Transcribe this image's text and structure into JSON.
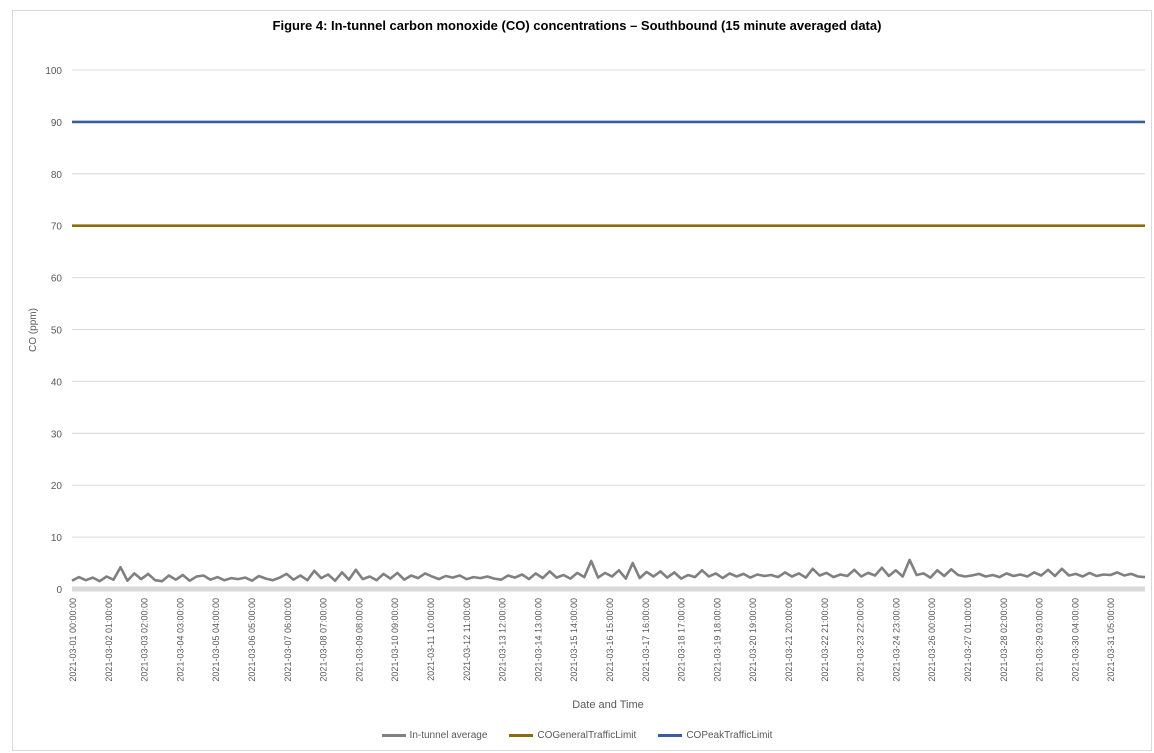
{
  "chart_data": {
    "type": "line",
    "title": "Figure 4: In-tunnel carbon monoxide (CO) concentrations – Southbound (15 minute averaged data)",
    "xlabel": "Date and Time",
    "ylabel": "CO (ppm)",
    "ylim": [
      0,
      100
    ],
    "yticks": [
      0,
      10,
      20,
      30,
      40,
      50,
      60,
      70,
      80,
      90,
      100
    ],
    "grid": true,
    "legend_position": "bottom",
    "x_tick_labels": [
      "2021-03-01 00:00:00",
      "2021-03-02 01:00:00",
      "2021-03-03 02:00:00",
      "2021-03-04 03:00:00",
      "2021-03-05 04:00:00",
      "2021-03-06 05:00:00",
      "2021-03-07 06:00:00",
      "2021-03-08 07:00:00",
      "2021-03-09 08:00:00",
      "2021-03-10 09:00:00",
      "2021-03-11 10:00:00",
      "2021-03-12 11:00:00",
      "2021-03-13 12:00:00",
      "2021-03-14 13:00:00",
      "2021-03-15 14:00:00",
      "2021-03-16 15:00:00",
      "2021-03-17 16:00:00",
      "2021-03-18 17:00:00",
      "2021-03-19 18:00:00",
      "2021-03-20 19:00:00",
      "2021-03-21 20:00:00",
      "2021-03-22 21:00:00",
      "2021-03-23 22:00:00",
      "2021-03-24 23:00:00",
      "2021-03-26 00:00:00",
      "2021-03-27 01:00:00",
      "2021-03-28 02:00:00",
      "2021-03-29 03:00:00",
      "2021-03-30 04:00:00",
      "2021-03-31 05:00:00"
    ],
    "series": [
      {
        "name": "In-tunnel average",
        "color": "#808080",
        "values": [
          1.6,
          2.3,
          1.7,
          2.2,
          1.5,
          2.4,
          1.8,
          4.2,
          1.6,
          3.0,
          1.9,
          2.9,
          1.7,
          1.5,
          2.6,
          1.8,
          2.7,
          1.6,
          2.4,
          2.6,
          1.8,
          2.3,
          1.7,
          2.1,
          1.9,
          2.2,
          1.6,
          2.5,
          2.0,
          1.7,
          2.2,
          2.9,
          1.8,
          2.6,
          1.7,
          3.5,
          2.1,
          2.8,
          1.6,
          3.2,
          1.8,
          3.7,
          1.9,
          2.4,
          1.7,
          2.9,
          2.0,
          3.1,
          1.8,
          2.6,
          2.1,
          3.0,
          2.4,
          1.9,
          2.5,
          2.2,
          2.6,
          1.9,
          2.3,
          2.1,
          2.4,
          2.0,
          1.8,
          2.6,
          2.2,
          2.8,
          1.9,
          3.0,
          2.1,
          3.4,
          2.2,
          2.7,
          2.0,
          3.1,
          2.3,
          5.4,
          2.2,
          3.1,
          2.4,
          3.6,
          2.0,
          5.0,
          2.1,
          3.3,
          2.4,
          3.4,
          2.2,
          3.2,
          2.0,
          2.7,
          2.3,
          3.6,
          2.4,
          3.0,
          2.1,
          3.0,
          2.4,
          2.9,
          2.2,
          2.8,
          2.5,
          2.7,
          2.3,
          3.2,
          2.4,
          3.0,
          2.2,
          3.9,
          2.6,
          3.1,
          2.3,
          2.8,
          2.5,
          3.7,
          2.4,
          3.1,
          2.6,
          4.1,
          2.5,
          3.6,
          2.4,
          5.6,
          2.7,
          3.0,
          2.2,
          3.6,
          2.5,
          3.8,
          2.7,
          2.4,
          2.6,
          2.9,
          2.4,
          2.7,
          2.3,
          3.0,
          2.5,
          2.8,
          2.4,
          3.2,
          2.6,
          3.7,
          2.5,
          3.9,
          2.6,
          2.9,
          2.4,
          3.1,
          2.5,
          2.8,
          2.7,
          3.2,
          2.6,
          2.9,
          2.4,
          2.3
        ]
      },
      {
        "name": "COGeneralTrafficLimit",
        "color": "#8a6d0b",
        "values": [
          70,
          70
        ]
      },
      {
        "name": "COPeakTrafficLimit",
        "color": "#3a5ba0",
        "values": [
          90,
          90
        ]
      }
    ]
  }
}
